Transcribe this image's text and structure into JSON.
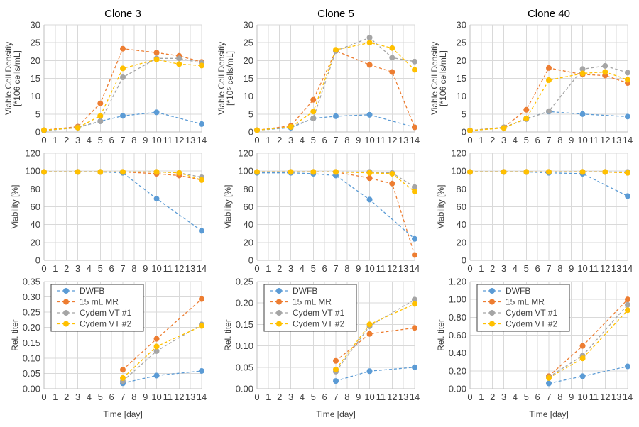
{
  "series_meta": [
    {
      "name": "DWFB",
      "color": "#5b9bd5"
    },
    {
      "name": "15 mL MR",
      "color": "#ed7d31"
    },
    {
      "name": "Cydem VT #1",
      "color": "#a5a5a5"
    },
    {
      "name": "Cydem VT #2",
      "color": "#ffc000"
    }
  ],
  "chart_data": [
    {
      "type": "line",
      "title": "Clone 3",
      "xlabel": "",
      "ylabel": [
        "Viable Cell Densitiy",
        "[*106 cells/mL]"
      ],
      "ylim": [
        0,
        30
      ],
      "ytick_step": 5,
      "ytick_decimals": 0,
      "xlim": [
        0,
        14
      ],
      "xticks": [
        0,
        1,
        2,
        3,
        4,
        5,
        6,
        7,
        8,
        9,
        10,
        11,
        12,
        13,
        14
      ],
      "grid": true,
      "legend": "none",
      "series": [
        {
          "x": [
            0,
            3,
            5,
            7,
            10,
            14
          ],
          "y": [
            0.4,
            1.2,
            3.0,
            4.5,
            5.5,
            2.2
          ]
        },
        {
          "x": [
            0,
            3,
            5,
            7,
            10,
            12,
            14
          ],
          "y": [
            0.5,
            1.5,
            8.0,
            23.3,
            22.2,
            21.3,
            19.6
          ]
        },
        {
          "x": [
            0,
            3,
            5,
            7,
            10,
            12,
            14
          ],
          "y": [
            0.4,
            1.3,
            3.0,
            15.3,
            20.6,
            20.6,
            19.3
          ]
        },
        {
          "x": [
            0,
            3,
            5,
            7,
            10,
            12,
            14
          ],
          "y": [
            0.5,
            1.2,
            4.5,
            17.8,
            20.3,
            19.0,
            18.6
          ]
        }
      ]
    },
    {
      "type": "line",
      "title": "Clone 5",
      "xlabel": "",
      "ylabel": [
        "Viable Cell Densitiy",
        "[*10⁵ cells/mL]"
      ],
      "ylim": [
        0,
        30
      ],
      "ytick_step": 5,
      "ytick_decimals": 0,
      "xlim": [
        0,
        14
      ],
      "xticks": [
        0,
        1,
        2,
        3,
        4,
        5,
        6,
        7,
        8,
        9,
        10,
        11,
        12,
        13,
        14
      ],
      "grid": true,
      "legend": "none",
      "series": [
        {
          "x": [
            0,
            3,
            5,
            7,
            10,
            14
          ],
          "y": [
            0.5,
            1.2,
            3.8,
            4.4,
            4.8,
            1.3
          ]
        },
        {
          "x": [
            0,
            3,
            5,
            7,
            10,
            12,
            14
          ],
          "y": [
            0.5,
            1.7,
            9.0,
            22.7,
            18.8,
            16.8,
            1.3
          ]
        },
        {
          "x": [
            0,
            3,
            5,
            7,
            10,
            12,
            14
          ],
          "y": [
            0.5,
            1.4,
            3.8,
            22.7,
            26.4,
            20.8,
            19.7
          ]
        },
        {
          "x": [
            0,
            3,
            5,
            7,
            10,
            12,
            14
          ],
          "y": [
            0.5,
            1.4,
            5.7,
            23.0,
            25.0,
            23.5,
            17.4
          ]
        }
      ]
    },
    {
      "type": "line",
      "title": "Clone 40",
      "xlabel": "",
      "ylabel": [
        "Viable Cell Densitiy",
        "[*106 cells/mL]"
      ],
      "ylim": [
        0,
        30
      ],
      "ytick_step": 5,
      "ytick_decimals": 0,
      "xlim": [
        0,
        14
      ],
      "xticks": [
        0,
        1,
        2,
        3,
        4,
        5,
        6,
        7,
        8,
        9,
        10,
        11,
        12,
        13,
        14
      ],
      "grid": true,
      "legend": "none",
      "series": [
        {
          "x": [
            0,
            3,
            5,
            7,
            10,
            14
          ],
          "y": [
            0.4,
            1.2,
            3.8,
            5.7,
            5.0,
            4.3
          ]
        },
        {
          "x": [
            0,
            3,
            5,
            7,
            10,
            12,
            14
          ],
          "y": [
            0.4,
            1.3,
            6.2,
            17.9,
            16.1,
            15.8,
            13.7
          ]
        },
        {
          "x": [
            0,
            3,
            5,
            7,
            10,
            12,
            14
          ],
          "y": [
            0.4,
            1.3,
            3.6,
            5.8,
            17.6,
            18.5,
            16.6
          ]
        },
        {
          "x": [
            0,
            3,
            5,
            7,
            10,
            12,
            14
          ],
          "y": [
            0.4,
            1.1,
            3.8,
            14.5,
            16.4,
            16.8,
            14.6
          ]
        }
      ]
    },
    {
      "type": "line",
      "title": "",
      "xlabel": "",
      "ylabel": [
        "Viability [%]"
      ],
      "ylim": [
        0,
        120
      ],
      "ytick_step": 20,
      "ytick_decimals": 0,
      "xlim": [
        0,
        14
      ],
      "xticks": [
        0,
        1,
        2,
        3,
        4,
        5,
        6,
        7,
        8,
        9,
        10,
        11,
        12,
        13,
        14
      ],
      "grid": true,
      "legend": "none",
      "series": [
        {
          "x": [
            0,
            3,
            5,
            7,
            10,
            14
          ],
          "y": [
            99,
            99,
            99,
            98,
            69,
            33
          ]
        },
        {
          "x": [
            0,
            3,
            5,
            7,
            10,
            12,
            14
          ],
          "y": [
            99,
            99,
            99,
            99,
            97,
            95,
            90
          ]
        },
        {
          "x": [
            0,
            3,
            5,
            7,
            10,
            12,
            14
          ],
          "y": [
            99,
            99,
            99,
            99,
            99,
            98,
            93
          ]
        },
        {
          "x": [
            0,
            3,
            5,
            7,
            10,
            12,
            14
          ],
          "y": [
            99,
            99,
            99,
            99,
            99,
            98,
            90
          ]
        }
      ]
    },
    {
      "type": "line",
      "title": "",
      "xlabel": "",
      "ylabel": [
        "Viability [%]"
      ],
      "ylim": [
        0,
        120
      ],
      "ytick_step": 20,
      "ytick_decimals": 0,
      "xlim": [
        0,
        14
      ],
      "xticks": [
        0,
        1,
        2,
        3,
        4,
        5,
        6,
        7,
        8,
        9,
        10,
        11,
        12,
        13,
        14
      ],
      "grid": true,
      "legend": "none",
      "series": [
        {
          "x": [
            0,
            3,
            5,
            7,
            10,
            14
          ],
          "y": [
            98,
            98,
            97,
            95,
            68,
            24
          ]
        },
        {
          "x": [
            0,
            3,
            5,
            7,
            10,
            12,
            14
          ],
          "y": [
            99,
            99,
            99,
            99,
            92,
            86,
            6
          ]
        },
        {
          "x": [
            0,
            3,
            5,
            7,
            10,
            12,
            14
          ],
          "y": [
            99,
            99,
            99,
            99,
            99,
            98,
            82
          ]
        },
        {
          "x": [
            0,
            3,
            5,
            7,
            10,
            12,
            14
          ],
          "y": [
            99,
            99,
            99,
            99,
            98,
            97,
            77
          ]
        }
      ]
    },
    {
      "type": "line",
      "title": "",
      "xlabel": "",
      "ylabel": [
        "Viability [%]"
      ],
      "ylim": [
        0,
        120
      ],
      "ytick_step": 20,
      "ytick_decimals": 0,
      "xlim": [
        0,
        14
      ],
      "xticks": [
        0,
        1,
        2,
        3,
        4,
        5,
        6,
        7,
        8,
        9,
        10,
        11,
        12,
        13,
        14
      ],
      "grid": true,
      "legend": "none",
      "series": [
        {
          "x": [
            0,
            3,
            5,
            7,
            10,
            14
          ],
          "y": [
            99,
            99,
            99,
            98,
            97,
            72
          ]
        },
        {
          "x": [
            0,
            3,
            5,
            7,
            10,
            12,
            14
          ],
          "y": [
            99,
            99,
            99,
            99,
            99,
            99,
            98
          ]
        },
        {
          "x": [
            0,
            3,
            5,
            7,
            10,
            12,
            14
          ],
          "y": [
            99,
            99,
            99,
            99,
            99,
            99,
            99
          ]
        },
        {
          "x": [
            0,
            3,
            5,
            7,
            10,
            12,
            14
          ],
          "y": [
            99,
            99,
            99,
            99,
            99,
            99,
            98
          ]
        }
      ]
    },
    {
      "type": "line",
      "title": "",
      "xlabel": "Time [day]",
      "ylabel": [
        "Rel. titer"
      ],
      "ylim": [
        0,
        0.35
      ],
      "ytick_step": 0.05,
      "ytick_decimals": 2,
      "xlim": [
        0,
        14
      ],
      "xticks": [
        0,
        1,
        2,
        3,
        4,
        5,
        6,
        7,
        8,
        9,
        10,
        11,
        12,
        13,
        14
      ],
      "grid": true,
      "legend": "upper-left",
      "series": [
        {
          "name": "DWFB",
          "x": [
            7,
            10,
            14
          ],
          "y": [
            0.018,
            0.043,
            0.058
          ]
        },
        {
          "name": "15 mL MR",
          "x": [
            7,
            10,
            14
          ],
          "y": [
            0.062,
            0.163,
            0.293
          ]
        },
        {
          "name": "Cydem VT #1",
          "x": [
            7,
            10,
            14
          ],
          "y": [
            0.025,
            0.123,
            0.21
          ]
        },
        {
          "name": "Cydem VT #2",
          "x": [
            7,
            10,
            14
          ],
          "y": [
            0.035,
            0.138,
            0.205
          ]
        }
      ]
    },
    {
      "type": "line",
      "title": "",
      "xlabel": "Time [day]",
      "ylabel": [
        "Rel. titer"
      ],
      "ylim": [
        0,
        0.25
      ],
      "ytick_step": 0.05,
      "ytick_decimals": 2,
      "xlim": [
        0,
        14
      ],
      "xticks": [
        0,
        1,
        2,
        3,
        4,
        5,
        6,
        7,
        8,
        9,
        10,
        11,
        12,
        13,
        14
      ],
      "grid": true,
      "legend": "upper-left",
      "series": [
        {
          "name": "DWFB",
          "x": [
            7,
            10,
            14
          ],
          "y": [
            0.018,
            0.041,
            0.05
          ]
        },
        {
          "name": "15 mL MR",
          "x": [
            7,
            10,
            14
          ],
          "y": [
            0.065,
            0.128,
            0.142
          ]
        },
        {
          "name": "Cydem VT #1",
          "x": [
            7,
            10,
            14
          ],
          "y": [
            0.04,
            0.146,
            0.208
          ]
        },
        {
          "name": "Cydem VT #2",
          "x": [
            7,
            10,
            14
          ],
          "y": [
            0.045,
            0.15,
            0.198
          ]
        }
      ]
    },
    {
      "type": "line",
      "title": "",
      "xlabel": "Time [day]",
      "ylabel": [
        "Rel. titer"
      ],
      "ylim": [
        0,
        1.2
      ],
      "ytick_step": 0.2,
      "ytick_decimals": 2,
      "xlim": [
        0,
        14
      ],
      "xticks": [
        0,
        1,
        2,
        3,
        4,
        5,
        6,
        7,
        8,
        9,
        10,
        11,
        12,
        13,
        14
      ],
      "grid": true,
      "legend": "upper-left",
      "series": [
        {
          "name": "DWFB",
          "x": [
            7,
            10,
            14
          ],
          "y": [
            0.06,
            0.14,
            0.25
          ]
        },
        {
          "name": "15 mL MR",
          "x": [
            7,
            10,
            14
          ],
          "y": [
            0.14,
            0.48,
            1.0
          ]
        },
        {
          "name": "Cydem VT #1",
          "x": [
            7,
            10,
            14
          ],
          "y": [
            0.13,
            0.37,
            0.94
          ]
        },
        {
          "name": "Cydem VT #2",
          "x": [
            7,
            10,
            14
          ],
          "y": [
            0.12,
            0.34,
            0.88
          ]
        }
      ]
    }
  ]
}
